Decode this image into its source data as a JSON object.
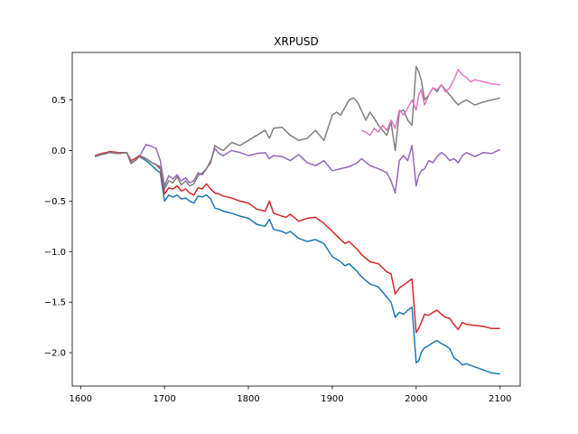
{
  "chart_data": {
    "type": "line",
    "title": "XRPUSD",
    "xlabel": "",
    "ylabel": "",
    "xlim": [
      1590,
      2124
    ],
    "ylim": [
      -2.33,
      0.97
    ],
    "xticks": [
      1600,
      1700,
      1800,
      1900,
      2000,
      2100
    ],
    "xtick_labels": [
      "1600",
      "1700",
      "1800",
      "1900",
      "2000",
      "2100"
    ],
    "yticks": [
      0.5,
      0.0,
      -0.5,
      -1.0,
      -1.5,
      -2.0
    ],
    "ytick_labels": [
      "0.5",
      "0.0",
      "−0.5",
      "−1.0",
      "−1.5",
      "−2.0"
    ],
    "grid": false,
    "series": [
      {
        "color": "#1f77b4",
        "x": [
          1617,
          1625,
          1635,
          1645,
          1655,
          1660,
          1665,
          1670,
          1678,
          1685,
          1690,
          1695,
          1700,
          1705,
          1710,
          1715,
          1720,
          1725,
          1730,
          1735,
          1740,
          1745,
          1750,
          1755,
          1760,
          1765,
          1770,
          1780,
          1790,
          1800,
          1810,
          1820,
          1825,
          1830,
          1840,
          1845,
          1850,
          1860,
          1870,
          1880,
          1890,
          1900,
          1910,
          1915,
          1920,
          1930,
          1935,
          1945,
          1955,
          1965,
          1970,
          1975,
          1980,
          1985,
          1990,
          1995,
          2000,
          2003,
          2006,
          2010,
          2015,
          2020,
          2025,
          2030,
          2035,
          2040,
          2045,
          2050,
          2055,
          2060,
          2070,
          2080,
          2090,
          2100
        ],
        "y": [
          -0.06,
          -0.04,
          -0.02,
          -0.03,
          -0.02,
          -0.12,
          -0.1,
          -0.06,
          -0.1,
          -0.15,
          -0.19,
          -0.22,
          -0.5,
          -0.44,
          -0.46,
          -0.44,
          -0.48,
          -0.47,
          -0.5,
          -0.52,
          -0.45,
          -0.46,
          -0.44,
          -0.48,
          -0.57,
          -0.58,
          -0.6,
          -0.62,
          -0.65,
          -0.67,
          -0.73,
          -0.75,
          -0.68,
          -0.78,
          -0.8,
          -0.82,
          -0.8,
          -0.87,
          -0.9,
          -0.88,
          -0.92,
          -1.05,
          -1.1,
          -1.14,
          -1.12,
          -1.2,
          -1.25,
          -1.32,
          -1.35,
          -1.45,
          -1.5,
          -1.65,
          -1.6,
          -1.62,
          -1.58,
          -1.55,
          -2.1,
          -2.08,
          -2.0,
          -1.95,
          -1.93,
          -1.9,
          -1.88,
          -1.91,
          -1.93,
          -1.96,
          -2.05,
          -2.08,
          -2.12,
          -2.11,
          -2.14,
          -2.17,
          -2.2,
          -2.21
        ]
      },
      {
        "color": "#d62728",
        "x": [
          1617,
          1625,
          1635,
          1645,
          1655,
          1660,
          1665,
          1670,
          1678,
          1685,
          1690,
          1695,
          1700,
          1705,
          1710,
          1715,
          1720,
          1725,
          1730,
          1735,
          1740,
          1745,
          1750,
          1755,
          1760,
          1765,
          1770,
          1780,
          1790,
          1800,
          1810,
          1820,
          1825,
          1830,
          1840,
          1845,
          1850,
          1860,
          1870,
          1880,
          1890,
          1900,
          1910,
          1915,
          1920,
          1930,
          1935,
          1945,
          1955,
          1965,
          1970,
          1975,
          1980,
          1985,
          1990,
          1995,
          2000,
          2003,
          2006,
          2010,
          2015,
          2020,
          2025,
          2030,
          2035,
          2040,
          2045,
          2050,
          2055,
          2060,
          2070,
          2080,
          2090,
          2100
        ],
        "y": [
          -0.05,
          -0.03,
          -0.01,
          -0.02,
          -0.02,
          -0.1,
          -0.08,
          -0.05,
          -0.08,
          -0.12,
          -0.14,
          -0.18,
          -0.43,
          -0.37,
          -0.38,
          -0.35,
          -0.4,
          -0.38,
          -0.42,
          -0.44,
          -0.37,
          -0.38,
          -0.33,
          -0.38,
          -0.42,
          -0.43,
          -0.45,
          -0.47,
          -0.5,
          -0.52,
          -0.58,
          -0.6,
          -0.5,
          -0.62,
          -0.65,
          -0.66,
          -0.63,
          -0.7,
          -0.67,
          -0.66,
          -0.72,
          -0.8,
          -0.88,
          -0.92,
          -0.9,
          -0.98,
          -1.03,
          -1.1,
          -1.12,
          -1.2,
          -1.22,
          -1.42,
          -1.36,
          -1.33,
          -1.3,
          -1.27,
          -1.8,
          -1.76,
          -1.7,
          -1.62,
          -1.63,
          -1.6,
          -1.58,
          -1.62,
          -1.65,
          -1.66,
          -1.72,
          -1.77,
          -1.7,
          -1.72,
          -1.73,
          -1.74,
          -1.76,
          -1.76
        ]
      },
      {
        "color": "#9467bd",
        "x": [
          1617,
          1625,
          1635,
          1645,
          1655,
          1660,
          1665,
          1670,
          1678,
          1685,
          1690,
          1695,
          1700,
          1705,
          1710,
          1715,
          1720,
          1725,
          1730,
          1735,
          1740,
          1745,
          1750,
          1755,
          1760,
          1765,
          1770,
          1780,
          1790,
          1800,
          1810,
          1820,
          1825,
          1830,
          1840,
          1850,
          1860,
          1870,
          1880,
          1890,
          1900,
          1910,
          1920,
          1930,
          1935,
          1945,
          1955,
          1965,
          1970,
          1975,
          1980,
          1985,
          1990,
          1995,
          2000,
          2003,
          2006,
          2010,
          2015,
          2020,
          2025,
          2030,
          2035,
          2040,
          2045,
          2050,
          2055,
          2060,
          2070,
          2080,
          2090,
          2100
        ],
        "y": [
          -0.06,
          -0.04,
          -0.02,
          -0.03,
          -0.02,
          -0.13,
          -0.1,
          -0.06,
          0.06,
          0.04,
          0.02,
          -0.1,
          -0.35,
          -0.25,
          -0.28,
          -0.24,
          -0.3,
          -0.27,
          -0.32,
          -0.3,
          -0.22,
          -0.24,
          -0.18,
          -0.1,
          0.02,
          -0.03,
          -0.05,
          0.0,
          -0.02,
          -0.05,
          -0.03,
          -0.02,
          -0.08,
          -0.05,
          -0.06,
          -0.1,
          -0.04,
          -0.12,
          -0.15,
          -0.1,
          -0.2,
          -0.18,
          -0.16,
          -0.12,
          -0.08,
          -0.15,
          -0.18,
          -0.22,
          -0.3,
          -0.42,
          -0.1,
          -0.05,
          -0.1,
          0.05,
          -0.35,
          -0.25,
          -0.2,
          -0.18,
          -0.1,
          -0.12,
          -0.06,
          -0.02,
          -0.05,
          -0.1,
          -0.08,
          -0.12,
          -0.05,
          -0.02,
          -0.06,
          -0.02,
          -0.03,
          0.01
        ]
      },
      {
        "color": "#7f7f7f",
        "x": [
          1617,
          1625,
          1635,
          1645,
          1655,
          1660,
          1665,
          1670,
          1678,
          1685,
          1690,
          1695,
          1700,
          1705,
          1710,
          1715,
          1720,
          1725,
          1730,
          1735,
          1740,
          1745,
          1750,
          1755,
          1760,
          1765,
          1770,
          1780,
          1790,
          1800,
          1810,
          1820,
          1825,
          1830,
          1840,
          1850,
          1860,
          1870,
          1880,
          1890,
          1900,
          1905,
          1910,
          1920,
          1925,
          1930,
          1940,
          1945,
          1950,
          1955,
          1965,
          1970,
          1975,
          1980,
          1985,
          1990,
          1995,
          2000,
          2003,
          2006,
          2010,
          2015,
          2020,
          2025,
          2030,
          2035,
          2040,
          2045,
          2050,
          2055,
          2060,
          2070,
          2080,
          2090,
          2100
        ],
        "y": [
          -0.06,
          -0.04,
          -0.02,
          -0.03,
          -0.02,
          -0.12,
          -0.1,
          -0.06,
          -0.08,
          -0.12,
          -0.14,
          -0.16,
          -0.38,
          -0.3,
          -0.32,
          -0.26,
          -0.34,
          -0.3,
          -0.35,
          -0.33,
          -0.25,
          -0.22,
          -0.18,
          -0.12,
          0.05,
          0.02,
          0.0,
          0.08,
          0.05,
          0.1,
          0.15,
          0.2,
          0.12,
          0.22,
          0.23,
          0.15,
          0.1,
          0.12,
          0.2,
          0.1,
          0.35,
          0.38,
          0.35,
          0.5,
          0.52,
          0.48,
          0.3,
          0.38,
          0.32,
          0.25,
          0.15,
          0.28,
          0.0,
          0.38,
          0.4,
          0.3,
          0.25,
          0.83,
          0.78,
          0.7,
          0.5,
          0.55,
          0.62,
          0.58,
          0.65,
          0.6,
          0.55,
          0.5,
          0.45,
          0.48,
          0.5,
          0.45,
          0.48,
          0.5,
          0.52
        ]
      },
      {
        "color": "#e377c2",
        "x": [
          1935,
          1940,
          1945,
          1950,
          1955,
          1960,
          1965,
          1970,
          1975,
          1980,
          1985,
          1990,
          1995,
          2000,
          2003,
          2006,
          2010,
          2015,
          2020,
          2025,
          2030,
          2035,
          2040,
          2045,
          2050,
          2055,
          2060,
          2065,
          2070,
          2080,
          2090,
          2100
        ],
        "y": [
          0.2,
          0.18,
          0.15,
          0.22,
          0.18,
          0.25,
          0.2,
          0.3,
          0.22,
          0.4,
          0.35,
          0.42,
          0.5,
          0.4,
          0.55,
          0.6,
          0.45,
          0.55,
          0.62,
          0.6,
          0.65,
          0.58,
          0.62,
          0.7,
          0.8,
          0.75,
          0.72,
          0.68,
          0.7,
          0.68,
          0.66,
          0.65
        ]
      }
    ]
  }
}
